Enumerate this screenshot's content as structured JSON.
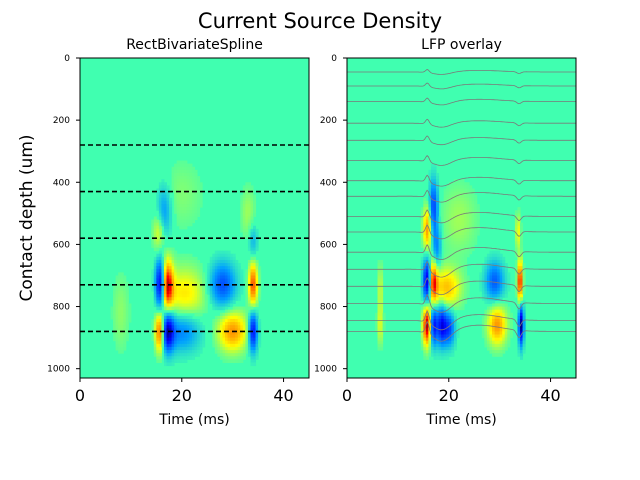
{
  "figure": {
    "suptitle": "Current Source Density",
    "ylabel": "Contact depth (um)"
  },
  "colors": {
    "colormap": [
      "#000080",
      "#0000ff",
      "#00a0ff",
      "#40ffb0",
      "#ffff00",
      "#ff8000",
      "#ff0000",
      "#800000"
    ],
    "background": "#40ffb0",
    "guide_lines": "#000000",
    "lfp_traces": "#7a7a7a"
  },
  "chart_data": [
    {
      "type": "heatmap",
      "title": "RectBivariateSpline",
      "xlabel": "Time (ms)",
      "ylabel": "Contact depth (um)",
      "xlim": [
        0,
        45
      ],
      "ylim": [
        1030,
        0
      ],
      "y_inverted": true,
      "xticks": [
        0,
        20,
        40
      ],
      "yticks": [
        0,
        200,
        400,
        600,
        800,
        1000
      ],
      "grid": false,
      "colormap": "jet",
      "hlines": [
        280,
        430,
        580,
        730,
        880
      ],
      "hline_style": "dashed",
      "sources": [
        {
          "t": 15.8,
          "depth": 730,
          "dt": 0.7,
          "dd": 55,
          "value": -1.0
        },
        {
          "t": 17.1,
          "depth": 730,
          "dt": 0.8,
          "dd": 55,
          "value": 0.85
        },
        {
          "t": 15.8,
          "depth": 880,
          "dt": 0.7,
          "dd": 45,
          "value": 0.95
        },
        {
          "t": 17.1,
          "depth": 880,
          "dt": 0.9,
          "dd": 45,
          "value": -0.9
        },
        {
          "t": 16.5,
          "depth": 495,
          "dt": 1.0,
          "dd": 60,
          "value": -0.35
        },
        {
          "t": 15.5,
          "depth": 560,
          "dt": 0.8,
          "dd": 45,
          "value": 0.3
        },
        {
          "t": 20.5,
          "depth": 760,
          "dt": 3.0,
          "dd": 60,
          "value": 0.35
        },
        {
          "t": 20.0,
          "depth": 880,
          "dt": 2.5,
          "dd": 45,
          "value": -0.4
        },
        {
          "t": 28.0,
          "depth": 730,
          "dt": 1.8,
          "dd": 50,
          "value": -0.55
        },
        {
          "t": 30.0,
          "depth": 880,
          "dt": 2.0,
          "dd": 45,
          "value": 0.55
        },
        {
          "t": 34.0,
          "depth": 730,
          "dt": 0.6,
          "dd": 50,
          "value": 0.7
        },
        {
          "t": 34.0,
          "depth": 880,
          "dt": 0.6,
          "dd": 45,
          "value": -0.8
        },
        {
          "t": 34.0,
          "depth": 590,
          "dt": 0.6,
          "dd": 40,
          "value": -0.25
        },
        {
          "t": 33.0,
          "depth": 500,
          "dt": 1.0,
          "dd": 60,
          "value": 0.15
        },
        {
          "t": 8.0,
          "depth": 820,
          "dt": 1.2,
          "dd": 90,
          "value": 0.12
        },
        {
          "t": 20.0,
          "depth": 440,
          "dt": 3.0,
          "dd": 80,
          "value": 0.1
        }
      ]
    },
    {
      "type": "heatmap",
      "title": "LFP overlay",
      "xlabel": "Time (ms)",
      "ylabel": "",
      "xlim": [
        0,
        45
      ],
      "ylim": [
        1030,
        0
      ],
      "y_inverted": true,
      "xticks": [
        0,
        20,
        40
      ],
      "yticks": [
        0,
        200,
        400,
        600,
        800,
        1000
      ],
      "grid": false,
      "colormap": "jet",
      "sources": [
        {
          "t": 15.8,
          "depth": 720,
          "dt": 0.6,
          "dd": 50,
          "value": -1.0
        },
        {
          "t": 16.9,
          "depth": 720,
          "dt": 0.6,
          "dd": 50,
          "value": 0.8
        },
        {
          "t": 15.8,
          "depth": 860,
          "dt": 0.6,
          "dd": 45,
          "value": 1.0
        },
        {
          "t": 17.0,
          "depth": 860,
          "dt": 0.6,
          "dd": 45,
          "value": -0.8
        },
        {
          "t": 17.0,
          "depth": 480,
          "dt": 0.6,
          "dd": 60,
          "value": -0.6
        },
        {
          "t": 15.8,
          "depth": 550,
          "dt": 0.6,
          "dd": 50,
          "value": 0.55
        },
        {
          "t": 17.6,
          "depth": 610,
          "dt": 0.6,
          "dd": 50,
          "value": -0.4
        },
        {
          "t": 19.5,
          "depth": 740,
          "dt": 2.0,
          "dd": 45,
          "value": 0.45
        },
        {
          "t": 18.6,
          "depth": 860,
          "dt": 0.6,
          "dd": 45,
          "value": -0.7
        },
        {
          "t": 20.0,
          "depth": 870,
          "dt": 0.8,
          "dd": 40,
          "value": -0.6
        },
        {
          "t": 29.0,
          "depth": 720,
          "dt": 1.3,
          "dd": 45,
          "value": -0.5
        },
        {
          "t": 29.5,
          "depth": 860,
          "dt": 1.3,
          "dd": 45,
          "value": 0.55
        },
        {
          "t": 34.0,
          "depth": 720,
          "dt": 0.35,
          "dd": 45,
          "value": 0.85
        },
        {
          "t": 34.2,
          "depth": 860,
          "dt": 0.35,
          "dd": 45,
          "value": -1.0
        },
        {
          "t": 33.6,
          "depth": 560,
          "dt": 0.35,
          "dd": 40,
          "value": 0.3
        },
        {
          "t": 6.5,
          "depth": 740,
          "dt": 0.4,
          "dd": 55,
          "value": 0.2
        },
        {
          "t": 6.5,
          "depth": 860,
          "dt": 0.4,
          "dd": 45,
          "value": 0.25
        },
        {
          "t": 22.0,
          "depth": 520,
          "dt": 2.5,
          "dd": 80,
          "value": 0.15
        }
      ],
      "lfp_traces": {
        "baselines": [
          45,
          90,
          140,
          210,
          265,
          330,
          395,
          445,
          510,
          560,
          625,
          680,
          735,
          790,
          845,
          880
        ],
        "events_ms": [
          15.8,
          17.2,
          33.8
        ],
        "x_range": [
          0,
          45
        ]
      }
    }
  ]
}
